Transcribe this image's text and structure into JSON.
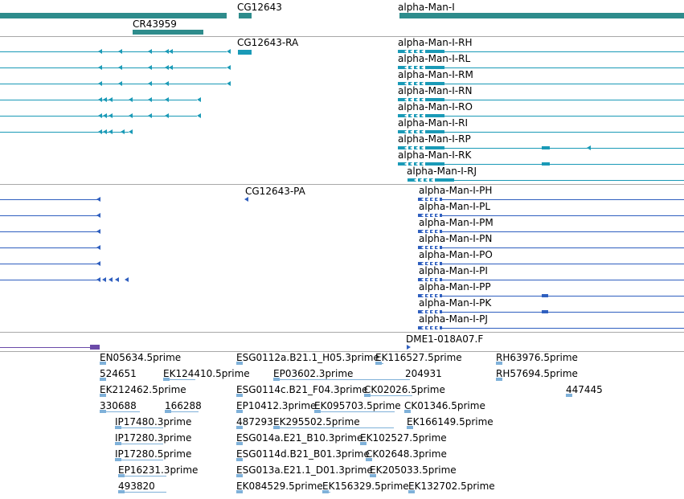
{
  "colors": {
    "gene": "#2e8c8c",
    "rna": "#1a9ab7",
    "protein": "#2f5fbf",
    "clone": "#6b4aa8",
    "est": "#7fb1d9",
    "separator": "#a8a8a8"
  },
  "genes": {
    "labels": [
      "CG12643",
      "alpha-Man-I",
      "CR43959"
    ]
  },
  "transcripts": {
    "left_label": "CG12643-RA",
    "right_labels": [
      "alpha-Man-I-RH",
      "alpha-Man-I-RL",
      "alpha-Man-I-RM",
      "alpha-Man-I-RN",
      "alpha-Man-I-RO",
      "alpha-Man-I-RI",
      "alpha-Man-I-RP",
      "alpha-Man-I-RK",
      "alpha-Man-I-RJ"
    ]
  },
  "proteins": {
    "left_label": "CG12643-PA",
    "right_labels": [
      "alpha-Man-I-PH",
      "alpha-Man-I-PL",
      "alpha-Man-I-PM",
      "alpha-Man-I-PN",
      "alpha-Man-I-PO",
      "alpha-Man-I-PI",
      "alpha-Man-I-PP",
      "alpha-Man-I-PK",
      "alpha-Man-I-PJ"
    ]
  },
  "clone": {
    "label": "DME1-018A07.F"
  },
  "ests": {
    "labels": [
      "EN05634.5prime",
      "ESG0112a.B21.1_H05.3prime",
      "EK116527.5prime",
      "RH63976.5prime",
      "524651",
      "EK124410.5prime",
      "EP03602.3prime",
      "204931",
      "RH57694.5prime",
      "EK212462.5prime",
      "ESG0114c.B21_F04.3prime",
      "CK02026.5prime",
      "447445",
      "330688",
      "166288",
      "EP10412.3prime",
      "EK095703.5prime",
      "CK01346.5prime",
      "IP17480.3prime",
      "487293",
      "EK295502.5prime",
      "EK166149.5prime",
      "IP17280.3prime",
      "ESG014a.E21_B10.3prime",
      "EK102527.5prime",
      "IP17280.5prime",
      "ESG0114d.B21_B01.3prime",
      "CK02648.3prime",
      "EP16231.3prime",
      "ESG013a.E21.1_D01.3prime",
      "EK205033.5prime",
      "493820",
      "EK084529.5prime",
      "EK156329.5prime",
      "EK132702.5prime"
    ]
  }
}
